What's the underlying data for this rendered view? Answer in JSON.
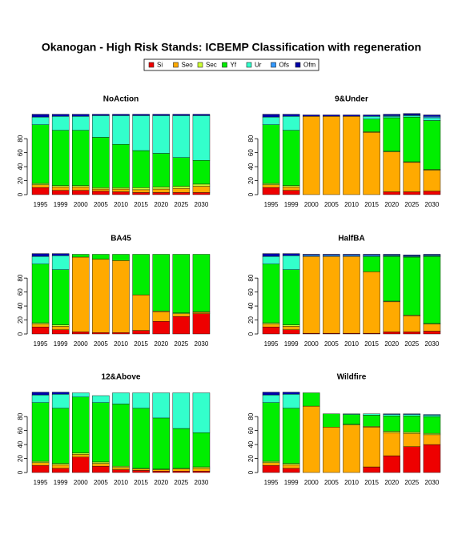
{
  "title": "Okanogan  - High Risk Stands: ICBEMP Classification with regeneration",
  "chart_data": [
    {
      "type": "stacked-bar",
      "title": "NoAction",
      "categories": [
        "1995",
        "1999",
        "2000",
        "2005",
        "2010",
        "2015",
        "2020",
        "2025",
        "2030"
      ],
      "ylim": [
        0,
        118
      ],
      "yticks": [
        0,
        20,
        40,
        60,
        80
      ],
      "series": [
        {
          "name": "Si",
          "color": "#ee0000",
          "values": [
            10,
            6,
            6,
            5,
            4,
            3,
            3,
            3,
            3
          ]
        },
        {
          "name": "Seo",
          "color": "#ffaa00",
          "values": [
            4,
            5,
            5,
            3,
            4,
            4,
            5,
            6,
            9
          ]
        },
        {
          "name": "Sec",
          "color": "#ccff33",
          "values": [
            2,
            2,
            2,
            2,
            2,
            3,
            3,
            3,
            3
          ]
        },
        {
          "name": "Yf",
          "color": "#00ee00",
          "values": [
            84,
            79,
            79,
            72,
            62,
            53,
            48,
            41,
            34
          ]
        },
        {
          "name": "Ur",
          "color": "#33ffcc",
          "values": [
            11,
            20,
            20,
            31,
            41,
            50,
            54,
            60,
            64
          ]
        },
        {
          "name": "Ofs",
          "color": "#3399ff",
          "values": [
            0,
            0,
            0,
            0,
            0,
            0,
            0,
            0,
            0
          ]
        },
        {
          "name": "Ofm",
          "color": "#0000aa",
          "values": [
            4,
            3,
            3,
            2,
            2,
            2,
            2,
            2,
            2
          ]
        }
      ]
    },
    {
      "type": "stacked-bar",
      "title": "9&Under",
      "categories": [
        "1995",
        "1999",
        "2000",
        "2005",
        "2010",
        "2015",
        "2020",
        "2025",
        "2030"
      ],
      "ylim": [
        0,
        118
      ],
      "yticks": [
        0,
        20,
        40,
        60,
        80
      ],
      "series": [
        {
          "name": "Si",
          "color": "#ee0000",
          "values": [
            10,
            6,
            0,
            0,
            0,
            0,
            4,
            4,
            5
          ]
        },
        {
          "name": "Seo",
          "color": "#ffaa00",
          "values": [
            4,
            5,
            112,
            112,
            112,
            89,
            57,
            42,
            30
          ]
        },
        {
          "name": "Sec",
          "color": "#ccff33",
          "values": [
            2,
            2,
            0,
            0,
            0,
            1,
            1,
            1,
            1
          ]
        },
        {
          "name": "Yf",
          "color": "#00ee00",
          "values": [
            84,
            79,
            0,
            0,
            0,
            18,
            48,
            64,
            70
          ]
        },
        {
          "name": "Ur",
          "color": "#33ffcc",
          "values": [
            11,
            20,
            0,
            0,
            0,
            4,
            2,
            2,
            4
          ]
        },
        {
          "name": "Ofs",
          "color": "#3399ff",
          "values": [
            0,
            0,
            0,
            0,
            0,
            0,
            1,
            1,
            2
          ]
        },
        {
          "name": "Ofm",
          "color": "#0000aa",
          "values": [
            4,
            3,
            2,
            2,
            2,
            2,
            2,
            2,
            2
          ]
        }
      ]
    },
    {
      "type": "stacked-bar",
      "title": "BA45",
      "categories": [
        "1995",
        "1999",
        "2000",
        "2005",
        "2010",
        "2015",
        "2020",
        "2025",
        "2030"
      ],
      "ylim": [
        0,
        118
      ],
      "yticks": [
        0,
        20,
        40,
        60,
        80
      ],
      "series": [
        {
          "name": "Si",
          "color": "#ee0000",
          "values": [
            10,
            6,
            3,
            2,
            2,
            5,
            18,
            25,
            29
          ]
        },
        {
          "name": "Seo",
          "color": "#ffaa00",
          "values": [
            4,
            5,
            107,
            105,
            103,
            51,
            14,
            4,
            2
          ]
        },
        {
          "name": "Sec",
          "color": "#ccff33",
          "values": [
            2,
            2,
            0,
            0,
            0,
            0,
            1,
            1,
            1
          ]
        },
        {
          "name": "Yf",
          "color": "#00ee00",
          "values": [
            84,
            79,
            4,
            7,
            9,
            58,
            81,
            84,
            82
          ]
        },
        {
          "name": "Ur",
          "color": "#33ffcc",
          "values": [
            11,
            20,
            0,
            0,
            0,
            0,
            0,
            0,
            0
          ]
        },
        {
          "name": "Ofs",
          "color": "#3399ff",
          "values": [
            0,
            0,
            0,
            0,
            0,
            0,
            0,
            0,
            0
          ]
        },
        {
          "name": "Ofm",
          "color": "#0000aa",
          "values": [
            4,
            3,
            0,
            0,
            0,
            0,
            0,
            0,
            0
          ]
        }
      ]
    },
    {
      "type": "stacked-bar",
      "title": "HalfBA",
      "categories": [
        "1995",
        "1999",
        "2000",
        "2005",
        "2010",
        "2015",
        "2020",
        "2025",
        "2030"
      ],
      "ylim": [
        0,
        118
      ],
      "yticks": [
        0,
        20,
        40,
        60,
        80
      ],
      "series": [
        {
          "name": "Si",
          "color": "#ee0000",
          "values": [
            10,
            6,
            1,
            1,
            1,
            1,
            3,
            3,
            4
          ]
        },
        {
          "name": "Seo",
          "color": "#ffaa00",
          "values": [
            4,
            5,
            110,
            110,
            110,
            88,
            43,
            23,
            10
          ]
        },
        {
          "name": "Sec",
          "color": "#ccff33",
          "values": [
            2,
            2,
            0,
            0,
            0,
            0,
            1,
            1,
            1
          ]
        },
        {
          "name": "Yf",
          "color": "#00ee00",
          "values": [
            84,
            79,
            0,
            0,
            0,
            22,
            64,
            83,
            96
          ]
        },
        {
          "name": "Ur",
          "color": "#33ffcc",
          "values": [
            11,
            20,
            0,
            0,
            0,
            0,
            1,
            1,
            1
          ]
        },
        {
          "name": "Ofs",
          "color": "#3399ff",
          "values": [
            0,
            0,
            2,
            2,
            2,
            2,
            1,
            1,
            1
          ]
        },
        {
          "name": "Ofm",
          "color": "#0000aa",
          "values": [
            4,
            3,
            1,
            1,
            1,
            1,
            1,
            1,
            1
          ]
        }
      ]
    },
    {
      "type": "stacked-bar",
      "title": "12&Above",
      "categories": [
        "1995",
        "1999",
        "2000",
        "2005",
        "2010",
        "2015",
        "2020",
        "2025",
        "2030"
      ],
      "ylim": [
        0,
        118
      ],
      "yticks": [
        0,
        20,
        40,
        60,
        80
      ],
      "series": [
        {
          "name": "Si",
          "color": "#ee0000",
          "values": [
            10,
            6,
            22,
            9,
            4,
            3,
            2,
            2,
            2
          ]
        },
        {
          "name": "Seo",
          "color": "#ffaa00",
          "values": [
            4,
            5,
            4,
            4,
            3,
            2,
            2,
            3,
            4
          ]
        },
        {
          "name": "Sec",
          "color": "#ccff33",
          "values": [
            2,
            2,
            2,
            2,
            2,
            1,
            1,
            1,
            2
          ]
        },
        {
          "name": "Yf",
          "color": "#00ee00",
          "values": [
            84,
            79,
            80,
            85,
            89,
            86,
            73,
            57,
            49
          ]
        },
        {
          "name": "Ur",
          "color": "#33ffcc",
          "values": [
            11,
            20,
            6,
            10,
            16,
            22,
            36,
            51,
            57
          ]
        },
        {
          "name": "Ofs",
          "color": "#3399ff",
          "values": [
            0,
            0,
            0,
            0,
            0,
            0,
            0,
            0,
            0
          ]
        },
        {
          "name": "Ofm",
          "color": "#0000aa",
          "values": [
            4,
            3,
            0,
            0,
            0,
            0,
            0,
            0,
            0
          ]
        }
      ]
    },
    {
      "type": "stacked-bar",
      "title": "Wildfire",
      "categories": [
        "1995",
        "1999",
        "2000",
        "2005",
        "2010",
        "2015",
        "2020",
        "2025",
        "2030"
      ],
      "ylim": [
        0,
        118
      ],
      "yticks": [
        0,
        20,
        40,
        60,
        80
      ],
      "series": [
        {
          "name": "Si",
          "color": "#ee0000",
          "values": [
            10,
            6,
            0,
            0,
            0,
            8,
            24,
            37,
            40
          ]
        },
        {
          "name": "Seo",
          "color": "#ffaa00",
          "values": [
            4,
            5,
            95,
            65,
            68,
            57,
            33,
            19,
            14
          ]
        },
        {
          "name": "Sec",
          "color": "#ccff33",
          "values": [
            2,
            2,
            0,
            0,
            1,
            1,
            2,
            2,
            2
          ]
        },
        {
          "name": "Yf",
          "color": "#00ee00",
          "values": [
            84,
            79,
            19,
            19,
            14,
            16,
            22,
            23,
            24
          ]
        },
        {
          "name": "Ur",
          "color": "#33ffcc",
          "values": [
            11,
            20,
            0,
            0,
            1,
            2,
            2,
            2,
            2
          ]
        },
        {
          "name": "Ofs",
          "color": "#3399ff",
          "values": [
            0,
            0,
            0,
            0,
            0,
            0,
            1,
            1,
            1
          ]
        },
        {
          "name": "Ofm",
          "color": "#0000aa",
          "values": [
            4,
            3,
            0,
            0,
            0,
            0,
            0,
            0,
            0
          ]
        }
      ]
    }
  ]
}
